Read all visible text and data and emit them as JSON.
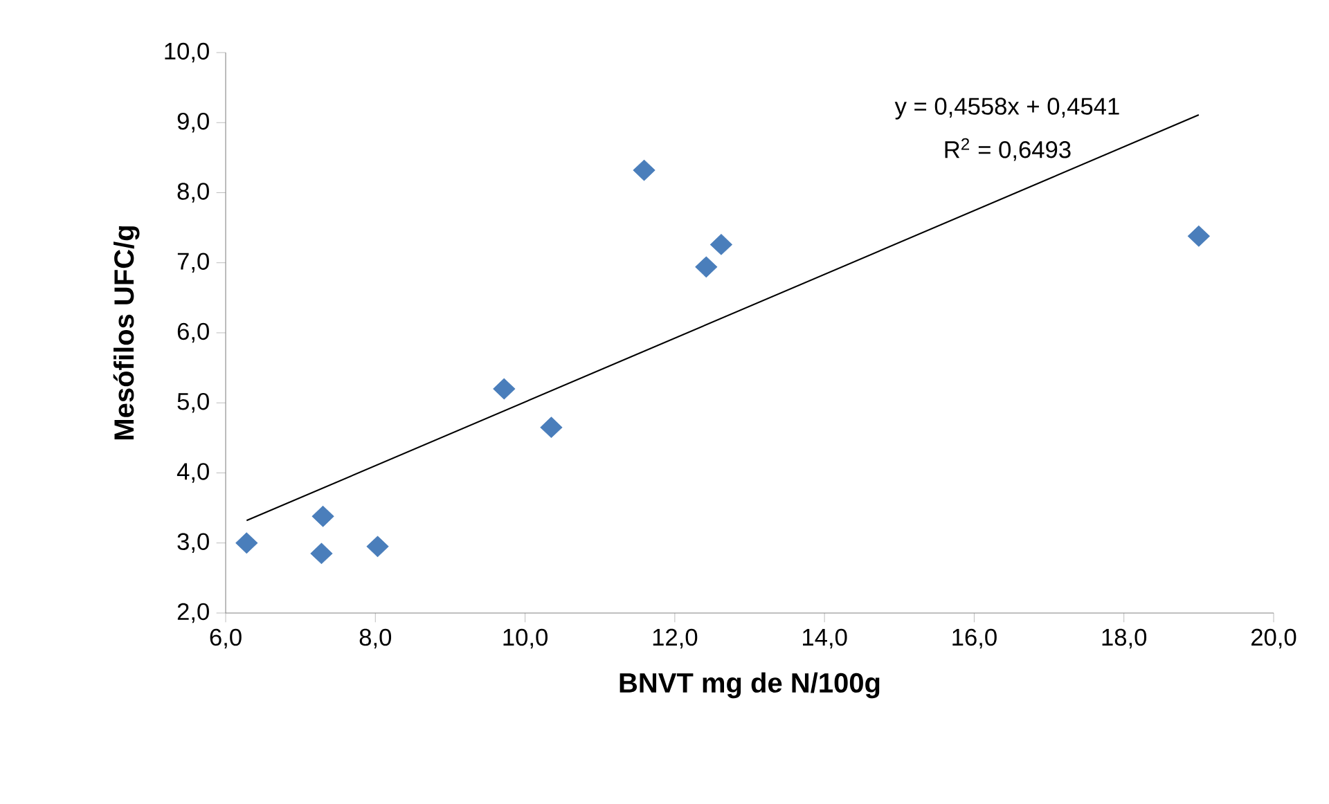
{
  "chart_data": {
    "type": "scatter",
    "xlabel": "BNVT mg de N/100g",
    "ylabel": "Mesófilos UFC/g",
    "series": [
      {
        "color": "#4a7ebb",
        "marker": "diamond",
        "x": [
          6.28,
          7.3,
          7.28,
          8.03,
          9.72,
          10.35,
          11.59,
          12.42,
          12.62,
          19.0
        ],
        "values": [
          3.0,
          3.38,
          2.85,
          2.95,
          5.2,
          4.65,
          8.32,
          6.94,
          7.26,
          7.38
        ]
      },
      {
        "type": "line",
        "color": "#000000",
        "marker": "none",
        "x": [
          6.28,
          19.0
        ],
        "values": [
          3.32,
          9.11
        ]
      }
    ],
    "xlim": [
      6,
      20
    ],
    "ylim": [
      2,
      10
    ],
    "xticks": [
      {
        "value": 6,
        "label": "6,0"
      },
      {
        "value": 8,
        "label": "8,0"
      },
      {
        "value": 10,
        "label": "10,0"
      },
      {
        "value": 12,
        "label": "12,0"
      },
      {
        "value": 14,
        "label": "14,0"
      },
      {
        "value": 16,
        "label": "16,0"
      },
      {
        "value": 18,
        "label": "18,0"
      },
      {
        "value": 20,
        "label": "20,0"
      }
    ],
    "yticks": [
      {
        "value": 2,
        "label": "2,0"
      },
      {
        "value": 3,
        "label": "3,0"
      },
      {
        "value": 4,
        "label": "4,0"
      },
      {
        "value": 5,
        "label": "5,0"
      },
      {
        "value": 6,
        "label": "6,0"
      },
      {
        "value": 7,
        "label": "7,0"
      },
      {
        "value": 8,
        "label": "8,0"
      },
      {
        "value": 9,
        "label": "9,0"
      },
      {
        "value": 10,
        "label": "10,0"
      }
    ],
    "annotations": [
      "y = 0,4558x + 0,4541",
      "R$^{2}$ = 0,6493"
    ],
    "grid": false
  }
}
